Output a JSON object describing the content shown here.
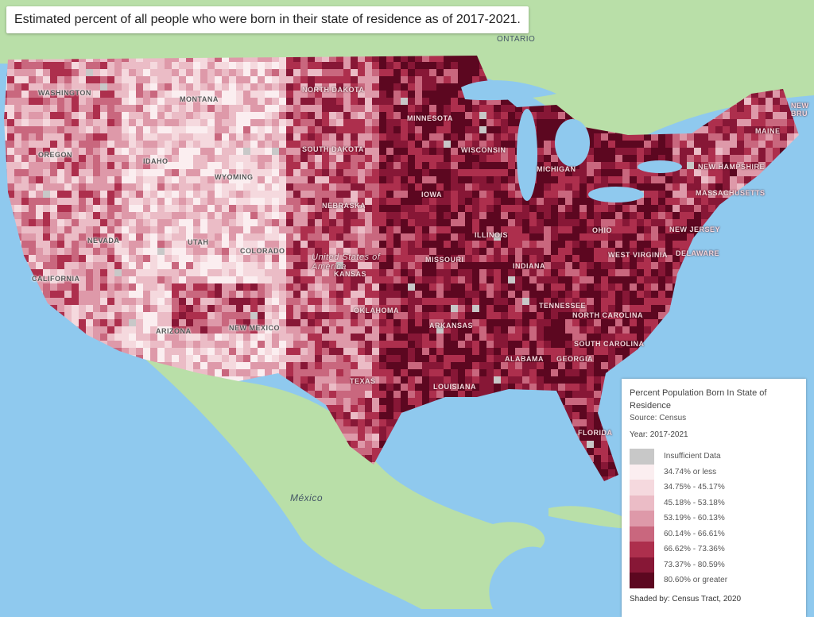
{
  "title": "Estimated percent of all people who were born in their state of residence as of 2017-2021.",
  "map": {
    "region_labels": {
      "ontario": "ONTARIO",
      "new_brunswick": "NEW BRU",
      "mexico": "México",
      "us": "United States of America"
    },
    "state_labels": [
      "WASHINGTON",
      "MONTANA",
      "NORTH DAKOTA",
      "MINNESOTA",
      "OREGON",
      "IDAHO",
      "WYOMING",
      "SOUTH DAKOTA",
      "WISCONSIN",
      "MICHIGAN",
      "NEVADA",
      "UTAH",
      "COLORADO",
      "NEBRASKA",
      "IOWA",
      "ILLINOIS",
      "OHIO",
      "CALIFORNIA",
      "ARIZONA",
      "NEW MEXICO",
      "OKLAHOMA",
      "KANSAS",
      "MISSOURI",
      "INDIANA",
      "TEXAS",
      "ARKANSAS",
      "LOUISIANA",
      "TENNESSEE",
      "NORTH CAROLINA",
      "SOUTH CAROLINA",
      "ALABAMA",
      "GEORGIA",
      "FLORIDA",
      "WEST VIRGINIA",
      "DELAWARE",
      "NEW JERSEY",
      "MASSACHUSETTS",
      "NEW HAMPSHIRE",
      "MAINE"
    ],
    "colors": {
      "ocean": "#8fc9ee",
      "land": "#b9dfa8",
      "insufficient": "#c8c8c8"
    }
  },
  "legend": {
    "title": "Percent Population Born In State of Residence",
    "source": "Source: Census",
    "year": "Year: 2017-2021",
    "items": [
      {
        "label": "Insufficient Data",
        "color": "#c8c8c8"
      },
      {
        "label": "34.74% or less",
        "color": "#fbeef0"
      },
      {
        "label": "34.75% - 45.17%",
        "color": "#f5d9de"
      },
      {
        "label": "45.18% - 53.18%",
        "color": "#ebbcc6"
      },
      {
        "label": "53.19% - 60.13%",
        "color": "#de99a9"
      },
      {
        "label": "60.14% - 66.61%",
        "color": "#c9677e"
      },
      {
        "label": "66.62% - 73.36%",
        "color": "#ad2f4d"
      },
      {
        "label": "73.37% - 80.59%",
        "color": "#871736"
      },
      {
        "label": "80.60% or greater",
        "color": "#5c0720"
      }
    ],
    "footer": "Shaded by: Census Tract, 2020"
  }
}
